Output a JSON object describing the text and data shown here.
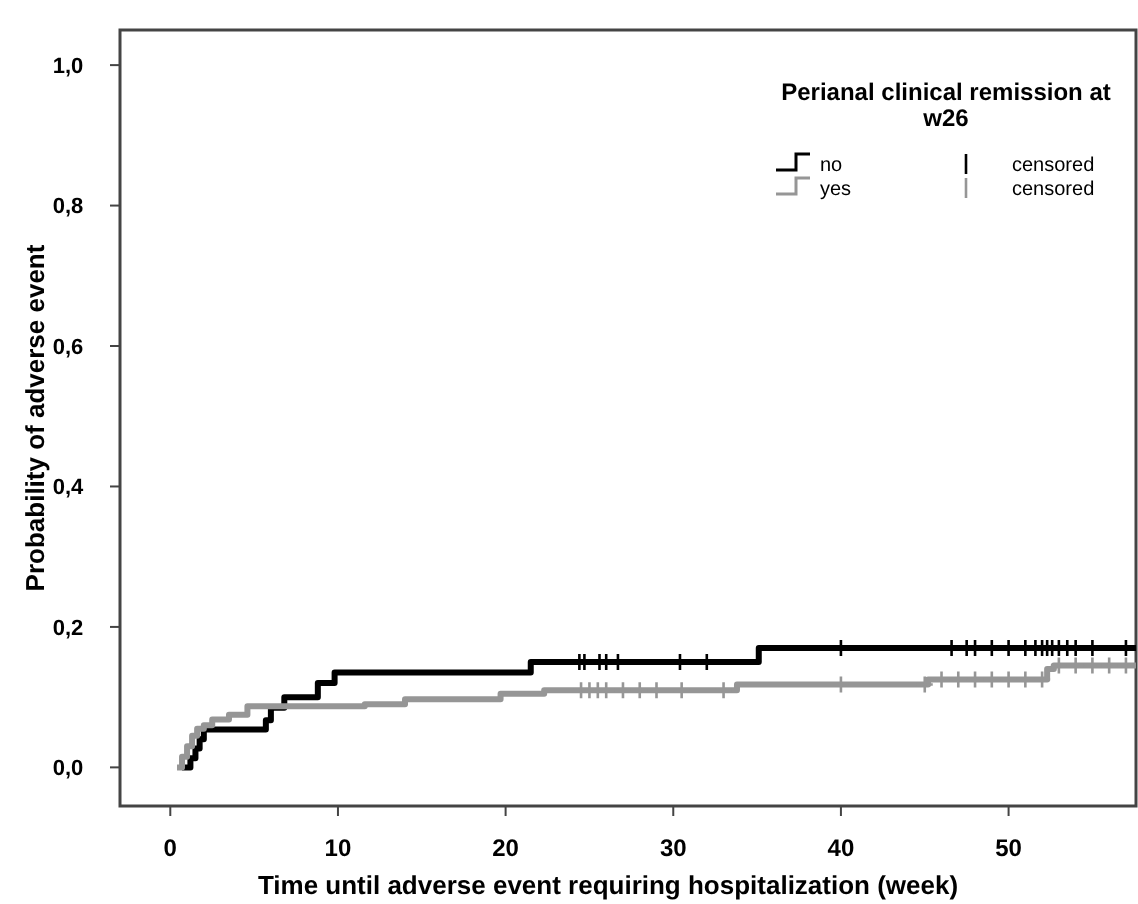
{
  "chart_data": {
    "type": "step",
    "xlabel": "Time until adverse event requiring hospitalization (week)",
    "ylabel": "Probability of adverse event",
    "legend_title": "Perianal clinical remission at w26",
    "xlim": [
      -3,
      57.6
    ],
    "ylim": [
      -0.055,
      1.05
    ],
    "xticks": [
      0,
      10,
      20,
      30,
      40,
      50
    ],
    "yticks": [
      {
        "value": 0,
        "label": "0,0"
      },
      {
        "value": 0.2,
        "label": "0,2"
      },
      {
        "value": 0.4,
        "label": "0,4"
      },
      {
        "value": 0.6,
        "label": "0,6"
      },
      {
        "value": 0.8,
        "label": "0,8"
      },
      {
        "value": 1,
        "label": "1,0"
      }
    ],
    "grid": false,
    "legend": "top right",
    "series": [
      {
        "name": "no",
        "color": "#000000",
        "x": [
          0.7,
          1.2,
          1.5,
          1.75,
          2,
          5.7,
          6,
          6.8,
          8.8,
          9.8,
          21.5,
          35.1,
          57.6
        ],
        "values": [
          0,
          0.013,
          0.027,
          0.04,
          0.054,
          0.067,
          0.085,
          0.1,
          0.12,
          0.135,
          0.15,
          0.17,
          0.17
        ]
      },
      {
        "name": "yes",
        "color": "#969696",
        "x": [
          0.4,
          0.7,
          1,
          1.3,
          1.6,
          2,
          2.5,
          3.5,
          4.6,
          11.6,
          14,
          19.7,
          22.3,
          33.8,
          45.2,
          52.3,
          52.7,
          57.6
        ],
        "values": [
          0,
          0.015,
          0.03,
          0.045,
          0.055,
          0.06,
          0.068,
          0.075,
          0.087,
          0.09,
          0.097,
          0.105,
          0.11,
          0.118,
          0.125,
          0.14,
          0.145,
          0.145
        ]
      },
      {
        "name": "censored",
        "type": "scatter",
        "marker": "cross",
        "color": "#000000",
        "x": [
          24.4,
          24.7,
          25.6,
          26,
          26.7,
          30.4,
          32,
          40,
          46.6,
          47.5,
          48,
          49,
          50,
          51,
          51.6,
          52,
          52.3,
          52.6,
          53,
          53.5,
          54,
          55,
          57
        ],
        "values": [
          0.15,
          0.15,
          0.15,
          0.15,
          0.15,
          0.15,
          0.15,
          0.17,
          0.17,
          0.17,
          0.17,
          0.17,
          0.17,
          0.17,
          0.17,
          0.17,
          0.17,
          0.17,
          0.17,
          0.17,
          0.17,
          0.17,
          0.17
        ]
      },
      {
        "name": "censored",
        "type": "scatter",
        "marker": "cross",
        "color": "#969696",
        "x": [
          24.5,
          25,
          25.5,
          26,
          27,
          28,
          29,
          30.5,
          33,
          40,
          45,
          46,
          47,
          48,
          49,
          50,
          51,
          52,
          53,
          54,
          55,
          56,
          57
        ],
        "values": [
          0.11,
          0.11,
          0.11,
          0.11,
          0.11,
          0.11,
          0.11,
          0.11,
          0.11,
          0.118,
          0.118,
          0.125,
          0.125,
          0.125,
          0.125,
          0.125,
          0.125,
          0.125,
          0.145,
          0.145,
          0.145,
          0.145,
          0.145
        ]
      }
    ]
  }
}
